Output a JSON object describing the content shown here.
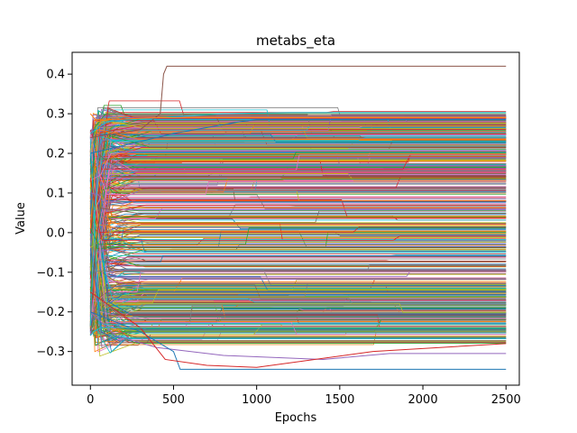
{
  "chart_data": {
    "type": "line",
    "title": "metabs_eta",
    "xlabel": "Epochs",
    "ylabel": "Value",
    "xlim": [
      -110,
      2580
    ],
    "ylim": [
      -0.385,
      0.455
    ],
    "xticks": [
      0,
      500,
      1000,
      1500,
      2000,
      2500
    ],
    "xtick_labels": [
      "0",
      "500",
      "1000",
      "1500",
      "2000",
      "2500"
    ],
    "yticks": [
      -0.3,
      -0.2,
      -0.1,
      0.0,
      0.1,
      0.2,
      0.3,
      0.4
    ],
    "ytick_labels": [
      "−0.3",
      "−0.2",
      "−0.1",
      "0.0",
      "0.1",
      "0.2",
      "0.3",
      "0.4"
    ],
    "grid": false,
    "legend": "none",
    "palette": [
      "#1f77b4",
      "#ff7f0e",
      "#2ca02c",
      "#d62728",
      "#9467bd",
      "#8c564b",
      "#e377c2",
      "#7f7f7f",
      "#bcbd22",
      "#17becf"
    ],
    "series_generated_count": 700,
    "series": [
      {
        "color": "#8c564b",
        "x": [
          0,
          300,
          420,
          440,
          460,
          2500
        ],
        "y": [
          0.24,
          0.26,
          0.3,
          0.4,
          0.42,
          0.42
        ]
      },
      {
        "color": "#9467bd",
        "x": [
          0,
          150,
          400,
          800,
          1400,
          1800,
          2500
        ],
        "y": [
          -0.2,
          -0.26,
          -0.29,
          -0.31,
          -0.32,
          -0.305,
          -0.305
        ]
      },
      {
        "color": "#1f77b4",
        "x": [
          0,
          300,
          500,
          540,
          2500
        ],
        "y": [
          -0.2,
          -0.25,
          -0.3,
          -0.345,
          -0.345
        ]
      },
      {
        "color": "#d62728",
        "x": [
          0,
          300,
          450,
          700,
          1000,
          1700,
          2500
        ],
        "y": [
          -0.15,
          -0.24,
          -0.32,
          -0.335,
          -0.34,
          -0.3,
          -0.28
        ]
      },
      {
        "color": "#17becf",
        "x": [
          0,
          100,
          400,
          800,
          1200,
          2500
        ],
        "y": [
          0.25,
          0.28,
          0.29,
          0.3,
          0.303,
          0.303
        ]
      },
      {
        "color": "#ff7f0e",
        "x": [
          0,
          40,
          100,
          400,
          2500
        ],
        "y": [
          0.3,
          0.28,
          0.285,
          0.29,
          0.29
        ]
      },
      {
        "color": "#17becf",
        "x": [
          0,
          20,
          60,
          150,
          2500
        ],
        "y": [
          -0.26,
          -0.25,
          -0.24,
          -0.24,
          -0.24
        ]
      },
      {
        "color": "#1f77b4",
        "x": [
          0,
          500,
          900,
          1000,
          2500
        ],
        "y": [
          0.2,
          0.25,
          0.28,
          0.285,
          0.285
        ]
      }
    ]
  }
}
